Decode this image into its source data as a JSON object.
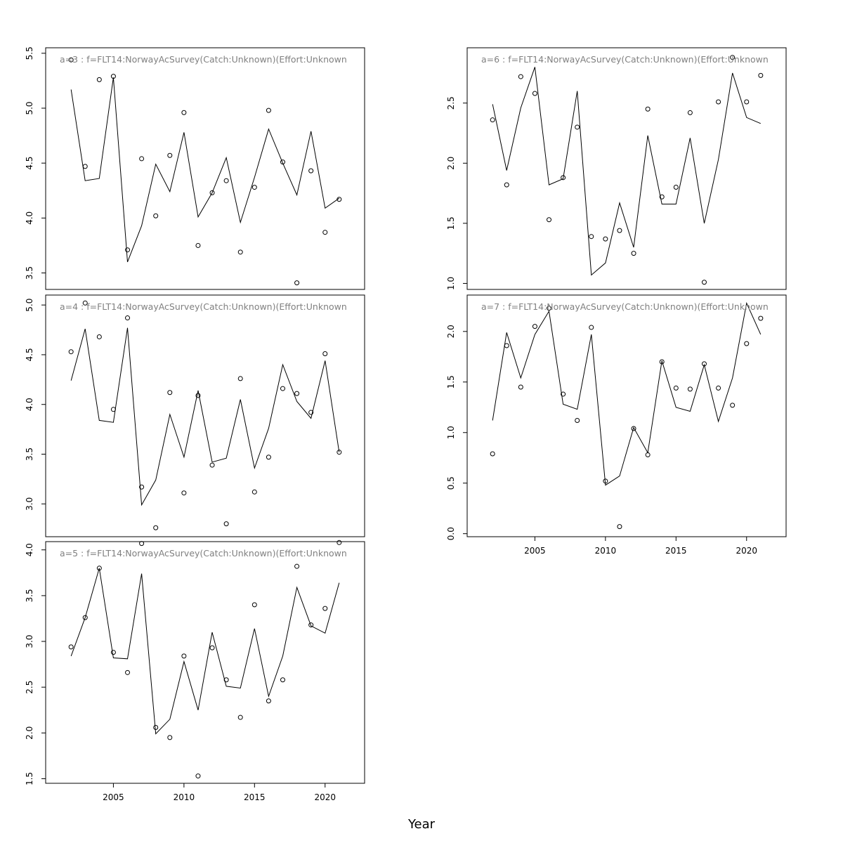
{
  "chart_data": {
    "type": "line",
    "xlabel": "Year",
    "panels": [
      {
        "id": "a3",
        "title": "a=3  :  f=FLT14:NorwayAcSurvey(Catch:Unknown)(Effort:Unknown",
        "x": [
          2002,
          2003,
          2004,
          2005,
          2006,
          2007,
          2008,
          2009,
          2010,
          2011,
          2012,
          2013,
          2014,
          2015,
          2016,
          2017,
          2018,
          2019,
          2020,
          2021
        ],
        "observed": [
          5.44,
          4.47,
          5.26,
          5.29,
          3.71,
          4.54,
          4.02,
          4.57,
          4.96,
          3.75,
          4.23,
          4.34,
          3.69,
          4.28,
          4.98,
          4.51,
          3.41,
          4.43,
          3.87,
          4.17
        ],
        "fitted": [
          5.17,
          4.34,
          4.36,
          5.28,
          3.6,
          3.93,
          4.49,
          4.24,
          4.78,
          4.01,
          4.23,
          4.55,
          3.96,
          4.37,
          4.81,
          4.5,
          4.21,
          4.79,
          4.09,
          4.18
        ],
        "ylim": [
          3.35,
          5.55
        ],
        "yticks": [
          3.5,
          4.0,
          4.5,
          5.0,
          5.5
        ],
        "xticks_shown": false
      },
      {
        "id": "a4",
        "title": "a=4  :  f=FLT14:NorwayAcSurvey(Catch:Unknown)(Effort:Unknown",
        "x": [
          2002,
          2003,
          2004,
          2005,
          2006,
          2007,
          2008,
          2009,
          2010,
          2011,
          2012,
          2013,
          2014,
          2015,
          2016,
          2017,
          2018,
          2019,
          2020,
          2021
        ],
        "observed": [
          4.53,
          5.02,
          4.68,
          3.95,
          4.87,
          3.17,
          2.76,
          4.12,
          3.11,
          4.09,
          3.39,
          2.8,
          4.26,
          3.12,
          3.47,
          4.16,
          4.11,
          3.92,
          4.51,
          3.52
        ],
        "fitted": [
          4.24,
          4.76,
          3.84,
          3.82,
          4.77,
          2.99,
          3.24,
          3.9,
          3.47,
          4.14,
          3.42,
          3.46,
          4.05,
          3.36,
          3.76,
          4.4,
          4.03,
          3.86,
          4.44,
          3.52
        ],
        "ylim": [
          2.67,
          5.1
        ],
        "yticks": [
          3.0,
          3.5,
          4.0,
          4.5,
          5.0
        ],
        "xticks_shown": false
      },
      {
        "id": "a5",
        "title": "a=5  :  f=FLT14:NorwayAcSurvey(Catch:Unknown)(Effort:Unknown",
        "x": [
          2002,
          2003,
          2004,
          2005,
          2006,
          2007,
          2008,
          2009,
          2010,
          2011,
          2012,
          2013,
          2014,
          2015,
          2016,
          2017,
          2018,
          2019,
          2020,
          2021
        ],
        "observed": [
          2.94,
          3.26,
          3.8,
          2.88,
          2.66,
          4.07,
          2.06,
          1.95,
          2.84,
          1.53,
          2.93,
          2.58,
          2.17,
          3.4,
          2.35,
          2.58,
          3.82,
          3.18,
          3.36,
          4.08
        ],
        "fitted": [
          2.84,
          3.26,
          3.8,
          2.82,
          2.81,
          3.74,
          1.99,
          2.15,
          2.78,
          2.25,
          3.1,
          2.51,
          2.49,
          3.14,
          2.4,
          2.84,
          3.59,
          3.17,
          3.09,
          3.64
        ],
        "ylim": [
          1.45,
          4.09
        ],
        "yticks": [
          1.5,
          2.0,
          2.5,
          3.0,
          3.5,
          4.0
        ],
        "xticks_shown": true
      },
      {
        "id": "a6",
        "title": "a=6  :  f=FLT14:NorwayAcSurvey(Catch:Unknown)(Effort:Unknown",
        "x": [
          2002,
          2003,
          2004,
          2005,
          2006,
          2007,
          2008,
          2009,
          2010,
          2011,
          2012,
          2013,
          2014,
          2015,
          2016,
          2017,
          2018,
          2019,
          2020,
          2021
        ],
        "observed": [
          2.36,
          1.82,
          2.72,
          2.58,
          1.53,
          1.88,
          2.3,
          1.39,
          1.37,
          1.44,
          1.25,
          2.45,
          1.72,
          1.8,
          2.42,
          1.01,
          2.51,
          2.88,
          2.51,
          2.73
        ],
        "fitted": [
          2.49,
          1.94,
          2.46,
          2.8,
          1.82,
          1.87,
          2.6,
          1.07,
          1.17,
          1.67,
          1.3,
          2.23,
          1.66,
          1.66,
          2.21,
          1.5,
          2.03,
          2.75,
          2.38,
          2.33
        ],
        "ylim": [
          0.95,
          2.96
        ],
        "yticks": [
          1.0,
          1.5,
          2.0,
          2.5
        ],
        "xticks_shown": false
      },
      {
        "id": "a7",
        "title": "a=7  :  f=FLT14:NorwayAcSurvey(Catch:Unknown)(Effort:Unknown",
        "x": [
          2002,
          2003,
          2004,
          2005,
          2006,
          2007,
          2008,
          2009,
          2010,
          2011,
          2012,
          2013,
          2014,
          2015,
          2016,
          2017,
          2018,
          2019,
          2020,
          2021
        ],
        "observed": [
          0.79,
          1.86,
          1.45,
          2.05,
          2.23,
          1.38,
          1.12,
          2.04,
          0.52,
          0.07,
          1.04,
          0.78,
          1.7,
          1.44,
          1.43,
          1.68,
          1.44,
          1.27,
          1.88,
          2.13
        ],
        "fitted": [
          1.12,
          1.99,
          1.54,
          1.97,
          2.2,
          1.28,
          1.23,
          1.97,
          0.48,
          0.57,
          1.05,
          0.8,
          1.71,
          1.25,
          1.21,
          1.67,
          1.11,
          1.54,
          2.28,
          1.97
        ],
        "ylim": [
          -0.03,
          2.36
        ],
        "yticks": [
          0.0,
          0.5,
          1.0,
          1.5,
          2.0
        ],
        "xticks_shown": true
      }
    ],
    "xlim": [
      2000.2,
      2022.8
    ],
    "xticks": [
      2005,
      2010,
      2015,
      2020
    ],
    "grid": false,
    "legend": "none",
    "series_style": {
      "fitted": "line",
      "observed": "open-circle"
    }
  }
}
